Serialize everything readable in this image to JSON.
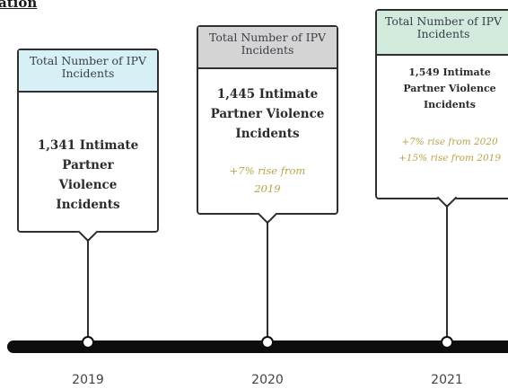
{
  "heading_fragment": "ation",
  "colors": {
    "header_2019": "#d6f0f5",
    "header_2020": "#d4d4d4",
    "header_2021": "#d2ebdc",
    "rise_text": "#b8a44a",
    "line": "#0d0d0d"
  },
  "timeline": [
    {
      "year": "2019",
      "header": "Total Number of IPV Incidents",
      "count_text": "1,341 Intimate Partner Violence Incidents",
      "rise_lines": []
    },
    {
      "year": "2020",
      "header": "Total Number of IPV Incidents",
      "count_text": "1,445 Intimate Partner Violence Incidents",
      "rise_lines": [
        "+7% rise from 2019"
      ]
    },
    {
      "year": "2021",
      "header": "Total Number of IPV Incidents",
      "count_text": "1,549 Intimate Partner Violence Incidents",
      "rise_lines": [
        "+7% rise from 2020",
        "+15% rise from 2019"
      ]
    }
  ]
}
